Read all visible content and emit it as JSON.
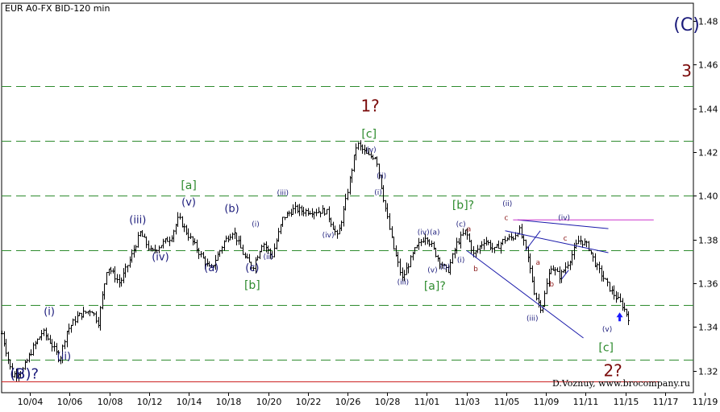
{
  "chart_data": {
    "type": "ohlc",
    "title": "EUR A0-FX BID-120 min",
    "credit": "D.Voznuy,  www.brocompany.ru",
    "ylim": [
      1.31,
      1.488
    ],
    "xlim": [
      0,
      61
    ],
    "y_ticks": [
      1.32,
      1.34,
      1.36,
      1.38,
      1.4,
      1.42,
      1.44,
      1.46,
      1.48
    ],
    "x_ticks": [
      {
        "x": 2.5,
        "label": "10/04"
      },
      {
        "x": 6,
        "label": "10/06"
      },
      {
        "x": 9.5,
        "label": "10/08"
      },
      {
        "x": 13,
        "label": "10/12"
      },
      {
        "x": 16.5,
        "label": "10/14"
      },
      {
        "x": 20,
        "label": "10/18"
      },
      {
        "x": 23.5,
        "label": "10/20"
      },
      {
        "x": 27,
        "label": "10/22"
      },
      {
        "x": 30.5,
        "label": "10/26"
      },
      {
        "x": 34,
        "label": "10/28"
      },
      {
        "x": 37.5,
        "label": "11/01"
      },
      {
        "x": 41,
        "label": "11/03"
      },
      {
        "x": 44.5,
        "label": "11/05"
      },
      {
        "x": 48,
        "label": "11/09"
      },
      {
        "x": 51.5,
        "label": "11/11"
      },
      {
        "x": 55,
        "label": "11/15"
      },
      {
        "x": 58.5,
        "label": "11/17"
      },
      {
        "x": 62,
        "label": "11/19"
      }
    ],
    "price_path": [
      [
        0,
        1.337
      ],
      [
        0.9,
        1.318
      ],
      [
        1.8,
        1.32
      ],
      [
        2.8,
        1.331
      ],
      [
        3.6,
        1.338
      ],
      [
        4.3,
        1.333
      ],
      [
        5.1,
        1.325
      ],
      [
        5.7,
        1.338
      ],
      [
        6.7,
        1.345
      ],
      [
        7.9,
        1.348
      ],
      [
        8.5,
        1.342
      ],
      [
        9.3,
        1.368
      ],
      [
        10.4,
        1.36
      ],
      [
        11.4,
        1.372
      ],
      [
        12.2,
        1.383
      ],
      [
        13.2,
        1.374
      ],
      [
        14.1,
        1.378
      ],
      [
        14.9,
        1.381
      ],
      [
        15.6,
        1.39
      ],
      [
        16.2,
        1.384
      ],
      [
        17.4,
        1.374
      ],
      [
        18.4,
        1.366
      ],
      [
        19.6,
        1.379
      ],
      [
        20.4,
        1.384
      ],
      [
        21.4,
        1.372
      ],
      [
        22.1,
        1.367
      ],
      [
        23.0,
        1.379
      ],
      [
        23.8,
        1.372
      ],
      [
        24.8,
        1.39
      ],
      [
        25.8,
        1.394
      ],
      [
        26.6,
        1.393
      ],
      [
        27.6,
        1.393
      ],
      [
        28.6,
        1.393
      ],
      [
        29.6,
        1.381
      ],
      [
        30.3,
        1.397
      ],
      [
        31.3,
        1.424
      ],
      [
        32.3,
        1.418
      ],
      [
        33.0,
        1.418
      ],
      [
        33.6,
        1.4
      ],
      [
        34.5,
        1.377
      ],
      [
        35.3,
        1.362
      ],
      [
        36.4,
        1.375
      ],
      [
        37.4,
        1.382
      ],
      [
        38.4,
        1.372
      ],
      [
        39.3,
        1.365
      ],
      [
        40.1,
        1.378
      ],
      [
        40.9,
        1.384
      ],
      [
        41.6,
        1.373
      ],
      [
        42.6,
        1.38
      ],
      [
        43.4,
        1.375
      ],
      [
        44.3,
        1.38
      ],
      [
        45.1,
        1.381
      ],
      [
        45.6,
        1.385
      ],
      [
        46.3,
        1.374
      ],
      [
        47.0,
        1.355
      ],
      [
        47.6,
        1.348
      ],
      [
        48.4,
        1.368
      ],
      [
        49.2,
        1.363
      ],
      [
        50.0,
        1.37
      ],
      [
        50.9,
        1.38
      ],
      [
        51.7,
        1.377
      ],
      [
        52.4,
        1.368
      ],
      [
        53.1,
        1.362
      ],
      [
        53.8,
        1.356
      ],
      [
        54.7,
        1.35
      ],
      [
        55.3,
        1.344
      ]
    ],
    "horizontal_levels": [
      {
        "y": 1.45,
        "style": "dash",
        "color": "#2e8b2e"
      },
      {
        "y": 1.425,
        "style": "dash",
        "color": "#2e8b2e"
      },
      {
        "y": 1.4,
        "style": "dash",
        "color": "#2e8b2e"
      },
      {
        "y": 1.375,
        "style": "dash",
        "color": "#2e8b2e"
      },
      {
        "y": 1.35,
        "style": "dash",
        "color": "#2e8b2e"
      },
      {
        "y": 1.325,
        "style": "dash",
        "color": "#2e8b2e"
      },
      {
        "y": 1.315,
        "style": "solid",
        "color": "#cc2222",
        "x_end": 58.0
      }
    ],
    "trend_lines": [
      {
        "x1": 41.0,
        "y1": 1.375,
        "x2": 51.3,
        "y2": 1.335,
        "color": "#1a1aaa"
      },
      {
        "x1": 44.4,
        "y1": 1.384,
        "x2": 53.5,
        "y2": 1.374,
        "color": "#1a1aaa"
      },
      {
        "x1": 45.5,
        "y1": 1.389,
        "x2": 53.5,
        "y2": 1.385,
        "color": "#1a1aaa"
      },
      {
        "x1": 45.1,
        "y1": 1.389,
        "x2": 57.5,
        "y2": 1.389,
        "color": "#cc33cc"
      },
      {
        "x1": 46.2,
        "y1": 1.375,
        "x2": 47.5,
        "y2": 1.384,
        "color": "#1a1aaa"
      },
      {
        "x1": 49.4,
        "y1": 1.362,
        "x2": 50.0,
        "y2": 1.366,
        "color": "#1a1aaa"
      }
    ],
    "wave_labels": [
      {
        "text": "(C)",
        "x": 60.4,
        "y": 1.4755,
        "color": "#1a1a7a",
        "size": 22
      },
      {
        "text": "3",
        "x": 60.4,
        "y": 1.4545,
        "color": "#7a0a0a",
        "size": 20
      },
      {
        "text": "1?",
        "x": 32.5,
        "y": 1.4385,
        "color": "#7a0a0a",
        "size": 20
      },
      {
        "text": "[c]",
        "x": 32.4,
        "y": 1.4265,
        "color": "#2e8b2e",
        "size": 14
      },
      {
        "text": "(v)",
        "x": 32.6,
        "y": 1.42,
        "color": "#1a1a7a",
        "size": 9
      },
      {
        "text": "[a]",
        "x": 16.5,
        "y": 1.403,
        "color": "#2e8b2e",
        "size": 14
      },
      {
        "text": "(v)",
        "x": 16.5,
        "y": 1.3955,
        "color": "#1a1a7a",
        "size": 13
      },
      {
        "text": "(b)",
        "x": 20.3,
        "y": 1.3925,
        "color": "#1a1a7a",
        "size": 13
      },
      {
        "text": "(iii)",
        "x": 12.0,
        "y": 1.3875,
        "color": "#1a1a7a",
        "size": 13
      },
      {
        "text": "(iv)",
        "x": 14.0,
        "y": 1.3705,
        "color": "#1a1a7a",
        "size": 13
      },
      {
        "text": "(a)",
        "x": 18.5,
        "y": 1.3655,
        "color": "#1a1a7a",
        "size": 13
      },
      {
        "text": "(c)",
        "x": 22.1,
        "y": 1.3655,
        "color": "#1a1a7a",
        "size": 13
      },
      {
        "text": "[b]",
        "x": 22.1,
        "y": 1.3575,
        "color": "#2e8b2e",
        "size": 14
      },
      {
        "text": "(i)",
        "x": 4.2,
        "y": 1.3455,
        "color": "#1a1a7a",
        "size": 13
      },
      {
        "text": "(ii)",
        "x": 5.5,
        "y": 1.325,
        "color": "#1a1a7a",
        "size": 13
      },
      {
        "text": "(B)?",
        "x": 2.0,
        "y": 1.3165,
        "color": "#1a1a7a",
        "size": 18
      },
      {
        "text": "(iii)",
        "x": 24.8,
        "y": 1.4002,
        "color": "#1a1a7a",
        "size": 9
      },
      {
        "text": "(i)",
        "x": 22.4,
        "y": 1.386,
        "color": "#1a1a7a",
        "size": 9
      },
      {
        "text": "(ii)",
        "x": 23.5,
        "y": 1.371,
        "color": "#1a1a7a",
        "size": 9
      },
      {
        "text": "(iv)",
        "x": 28.8,
        "y": 1.381,
        "color": "#1a1a7a",
        "size": 9
      },
      {
        "text": "(ii)",
        "x": 33.5,
        "y": 1.408,
        "color": "#1a1a7a",
        "size": 9
      },
      {
        "text": "(i)",
        "x": 33.2,
        "y": 1.4005,
        "color": "#1a1a7a",
        "size": 9
      },
      {
        "text": "(iii)",
        "x": 35.4,
        "y": 1.3595,
        "color": "#1a1a7a",
        "size": 9
      },
      {
        "text": "[b]?",
        "x": 40.7,
        "y": 1.394,
        "color": "#2e8b2e",
        "size": 14
      },
      {
        "text": "(iv)",
        "x": 37.2,
        "y": 1.3822,
        "color": "#1a1a7a",
        "size": 9
      },
      {
        "text": "(a)",
        "x": 38.2,
        "y": 1.3822,
        "color": "#1a1a7a",
        "size": 9
      },
      {
        "text": "(c)",
        "x": 40.5,
        "y": 1.386,
        "color": "#1a1a7a",
        "size": 9
      },
      {
        "text": "(v)",
        "x": 38.0,
        "y": 1.365,
        "color": "#1a1a7a",
        "size": 9
      },
      {
        "text": "(b)",
        "x": 39.1,
        "y": 1.3665,
        "color": "#1a1a7a",
        "size": 9
      },
      {
        "text": "(i)",
        "x": 40.5,
        "y": 1.3695,
        "color": "#1a1a7a",
        "size": 9
      },
      {
        "text": "[a]?",
        "x": 38.2,
        "y": 1.357,
        "color": "#2e8b2e",
        "size": 14
      },
      {
        "text": "a",
        "x": 41.2,
        "y": 1.3838,
        "color": "#8b1a1a",
        "size": 9
      },
      {
        "text": "b",
        "x": 41.8,
        "y": 1.3655,
        "color": "#8b1a1a",
        "size": 9
      },
      {
        "text": "(ii)",
        "x": 44.6,
        "y": 1.3953,
        "color": "#1a1a7a",
        "size": 9
      },
      {
        "text": "c",
        "x": 44.5,
        "y": 1.3888,
        "color": "#8b1a1a",
        "size": 9
      },
      {
        "text": "(iv)",
        "x": 49.6,
        "y": 1.3888,
        "color": "#1a1a7a",
        "size": 9
      },
      {
        "text": "c",
        "x": 49.7,
        "y": 1.3795,
        "color": "#8b1a1a",
        "size": 9
      },
      {
        "text": "a",
        "x": 47.3,
        "y": 1.3685,
        "color": "#8b1a1a",
        "size": 9
      },
      {
        "text": "b",
        "x": 48.5,
        "y": 1.3585,
        "color": "#8b1a1a",
        "size": 9
      },
      {
        "text": "(iii)",
        "x": 46.8,
        "y": 1.343,
        "color": "#1a1a7a",
        "size": 9
      },
      {
        "text": "(v)",
        "x": 53.4,
        "y": 1.338,
        "color": "#1a1a7a",
        "size": 9
      },
      {
        "text": "[c]",
        "x": 53.3,
        "y": 1.329,
        "color": "#2e8b2e",
        "size": 14
      },
      {
        "text": "2?",
        "x": 53.9,
        "y": 1.3175,
        "color": "#7a0a0a",
        "size": 20
      }
    ],
    "arrow": {
      "x": 54.5,
      "y": 1.3445,
      "direction": "up",
      "color": "#1a1aff"
    }
  }
}
